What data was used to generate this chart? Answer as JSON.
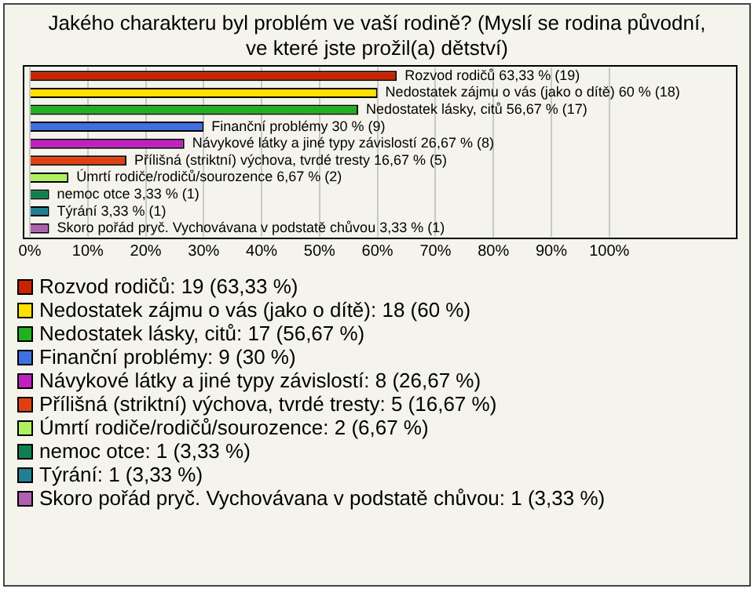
{
  "chart_data": {
    "type": "bar",
    "orientation": "horizontal",
    "title": "Jakého charakteru byl problém ve vaší rodině? (Myslí se rodina původní, ve které jste prožil(a) dětství)",
    "categories": [
      "Rozvod rodičů",
      "Nedostatek zájmu o vás (jako o dítě)",
      "Nedostatek lásky, citů",
      "Finanční problémy",
      "Návykové látky a jiné typy závislostí",
      "Přílišná (striktní) výchova, tvrdé tresty",
      "Úmrtí rodiče/rodičů/sourozence",
      "nemoc otce",
      "Týrání",
      "Skoro pořád pryč. Vychovávana v podstatě chůvou"
    ],
    "values": [
      63.33,
      60,
      56.67,
      30,
      26.67,
      16.67,
      6.67,
      3.33,
      3.33,
      3.33
    ],
    "value_labels": [
      "63,33 % (19)",
      "60 % (18)",
      "56,67 % (17)",
      "30 % (9)",
      "26,67 % (8)",
      "16,67 % (5)",
      "6,67 % (2)",
      "3,33 % (1)",
      "3,33 % (1)",
      "3,33 % (1)"
    ],
    "colors": [
      "#cc2200",
      "#ffe000",
      "#20b020",
      "#4070e0",
      "#c020c0",
      "#e04010",
      "#b0f060",
      "#108050",
      "#208090",
      "#b060b0"
    ],
    "xlim": [
      0,
      122
    ],
    "xticks": [
      {
        "value": 0,
        "label": "0%"
      },
      {
        "value": 10,
        "label": "10%"
      },
      {
        "value": 20,
        "label": "20%"
      },
      {
        "value": 30,
        "label": "30%"
      },
      {
        "value": 40,
        "label": "40%"
      },
      {
        "value": 50,
        "label": "50%"
      },
      {
        "value": 60,
        "label": "60%"
      },
      {
        "value": 70,
        "label": "70%"
      },
      {
        "value": 80,
        "label": "80%"
      },
      {
        "value": 90,
        "label": "90%"
      },
      {
        "value": 100,
        "label": "100%"
      }
    ],
    "grid": "x",
    "tick_labels": "x",
    "annotations": [
      "Rozvod rodičů: 19 (63,33 %)",
      "Nedostatek zájmu o vás (jako o dítě): 18 (60 %)",
      "Nedostatek lásky, citů: 17 (56,67 %)",
      "Finanční problémy: 9 (30 %)",
      "Návykové látky a jiné typy závislostí: 8 (26,67 %)",
      "Přílišná (striktní) výchova, tvrdé tresty: 5 (16,67 %)",
      "Úmrtí rodiče/rodičů/sourozence: 2 (6,67 %)",
      "nemoc otce: 1 (3,33 %)",
      "Týrání: 1 (3,33 %)",
      "Skoro pořád pryč. Vychovávana v podstatě chůvou: 1 (3,33 %)"
    ]
  }
}
